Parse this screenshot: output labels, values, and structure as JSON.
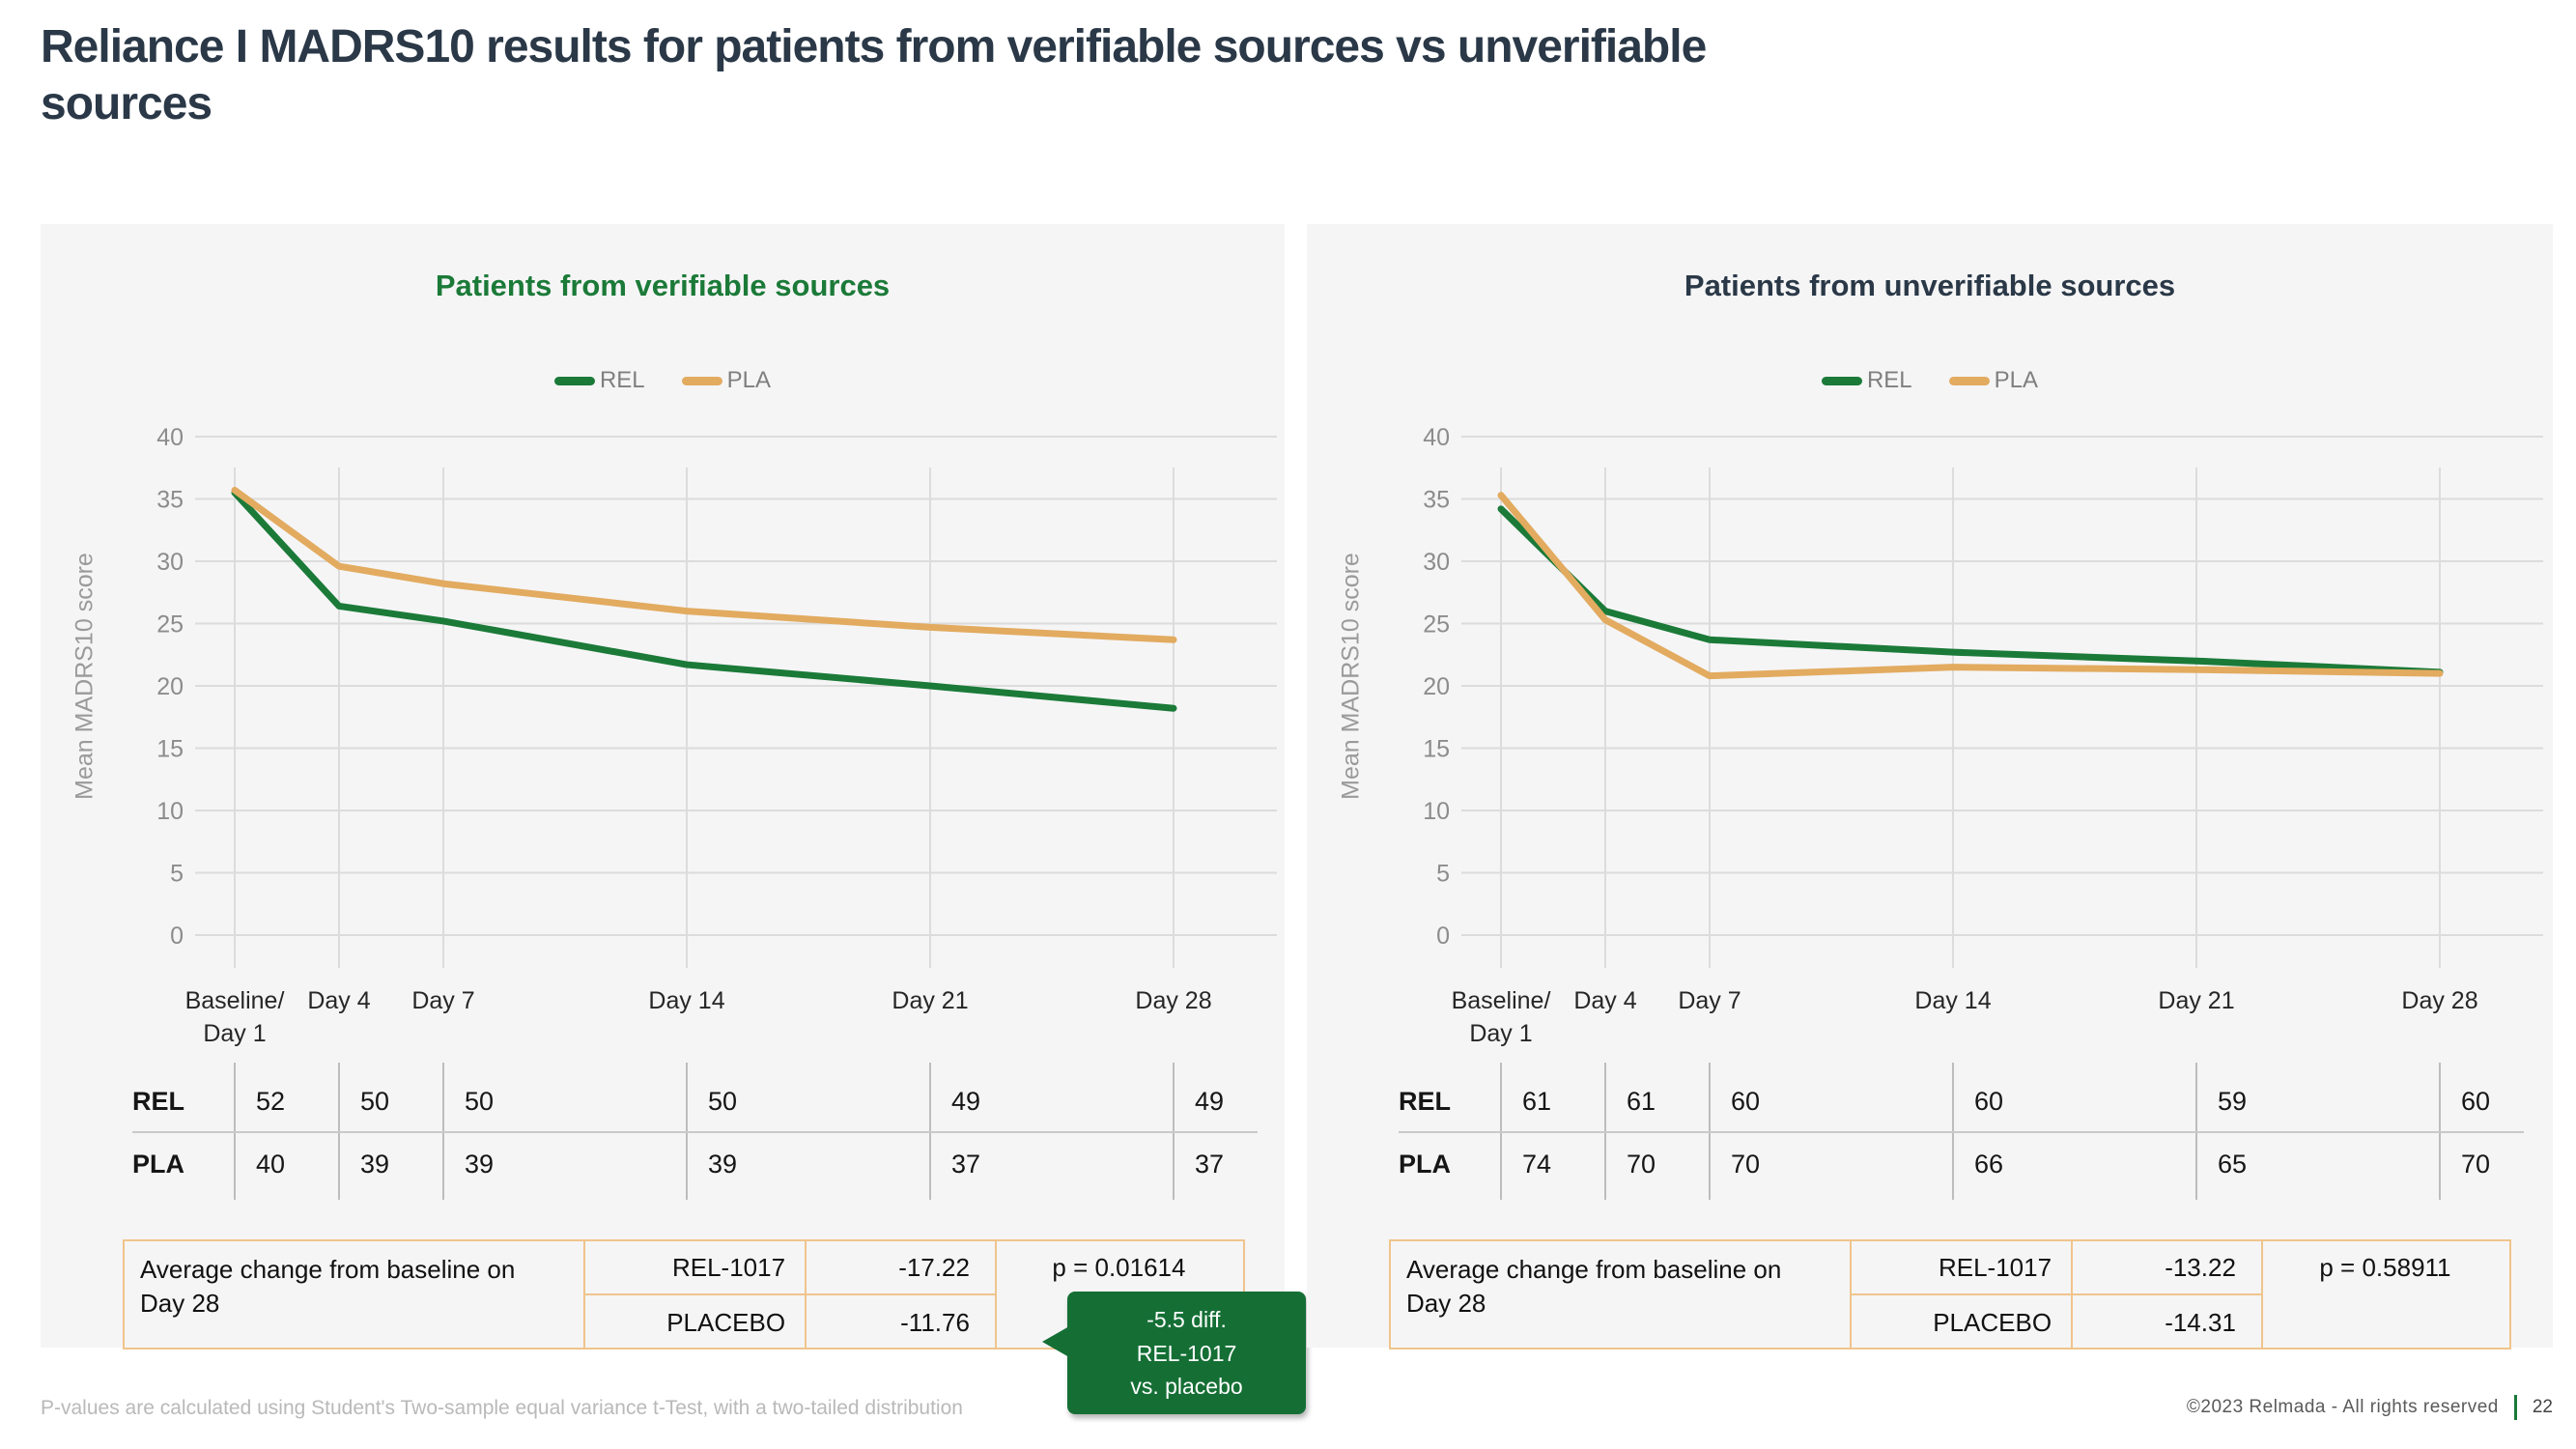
{
  "slide": {
    "title": "Reliance I MADRS10 results for patients from verifiable sources vs unverifiable sources",
    "footnote": "P-values are calculated using Student's Two-sample equal variance t-Test, with a two-tailed distribution",
    "copyright": "©2023 Relmada - All rights reserved",
    "page_number": "22"
  },
  "colors": {
    "rel_green": "#1b7a38",
    "pla_tan": "#e2ab60",
    "navy": "#2a3847",
    "callout_green": "#156f35",
    "table_border_tan": "#f0c48c"
  },
  "chart_data": [
    {
      "type": "line",
      "title": "Patients from verifiable sources",
      "title_color": "#1b7a38",
      "ylabel": "Mean MADRS10 score",
      "ylim": [
        0,
        40
      ],
      "ytick_step": 5,
      "grid": true,
      "legend_position": "top",
      "x_days": [
        1,
        4,
        7,
        14,
        21,
        28
      ],
      "categories": [
        [
          "Baseline/",
          "Day 1"
        ],
        [
          "Day 4"
        ],
        [
          "Day 7"
        ],
        [
          "Day 14"
        ],
        [
          "Day 21"
        ],
        [
          "Day 28"
        ]
      ],
      "series": [
        {
          "name": "REL",
          "color": "#1b7a38",
          "values": [
            35.5,
            26.4,
            25.2,
            21.7,
            20.0,
            18.2
          ]
        },
        {
          "name": "PLA",
          "color": "#e2ab60",
          "values": [
            35.7,
            29.6,
            28.2,
            26.0,
            24.7,
            23.7
          ]
        }
      ],
      "n_table": {
        "rows": [
          {
            "label": "REL",
            "values": [
              "52",
              "50",
              "50",
              "50",
              "49",
              "49"
            ]
          },
          {
            "label": "PLA",
            "values": [
              "40",
              "39",
              "39",
              "39",
              "37",
              "37"
            ]
          }
        ]
      },
      "summary": {
        "label": "Average change from baseline on Day 28",
        "arm1": "REL-1017",
        "value1": "-17.22",
        "arm2": "PLACEBO",
        "value2": "-11.76",
        "p": "p = 0.01614"
      },
      "callout": {
        "color": "#156f35",
        "line1": "-5.5 diff.",
        "line2": "REL-1017",
        "line3": "vs. placebo"
      }
    },
    {
      "type": "line",
      "title": "Patients from unverifiable sources",
      "title_color": "#2a3847",
      "ylabel": "Mean MADRS10 score",
      "ylim": [
        0,
        40
      ],
      "ytick_step": 5,
      "grid": true,
      "legend_position": "top",
      "x_days": [
        1,
        4,
        7,
        14,
        21,
        28
      ],
      "categories": [
        [
          "Baseline/",
          "Day 1"
        ],
        [
          "Day 4"
        ],
        [
          "Day 7"
        ],
        [
          "Day 14"
        ],
        [
          "Day 21"
        ],
        [
          "Day 28"
        ]
      ],
      "series": [
        {
          "name": "REL",
          "color": "#1b7a38",
          "values": [
            34.2,
            26.0,
            23.7,
            22.7,
            22.0,
            21.1
          ]
        },
        {
          "name": "PLA",
          "color": "#e2ab60",
          "values": [
            35.3,
            25.3,
            20.8,
            21.5,
            21.3,
            21.0
          ]
        }
      ],
      "n_table": {
        "rows": [
          {
            "label": "REL",
            "values": [
              "61",
              "61",
              "60",
              "60",
              "59",
              "60"
            ]
          },
          {
            "label": "PLA",
            "values": [
              "74",
              "70",
              "70",
              "66",
              "65",
              "70"
            ]
          }
        ]
      },
      "summary": {
        "label": "Average change from baseline on Day 28",
        "arm1": "REL-1017",
        "value1": "-13.22",
        "arm2": "PLACEBO",
        "value2": "-14.31",
        "p": "p = 0.58911"
      }
    }
  ]
}
